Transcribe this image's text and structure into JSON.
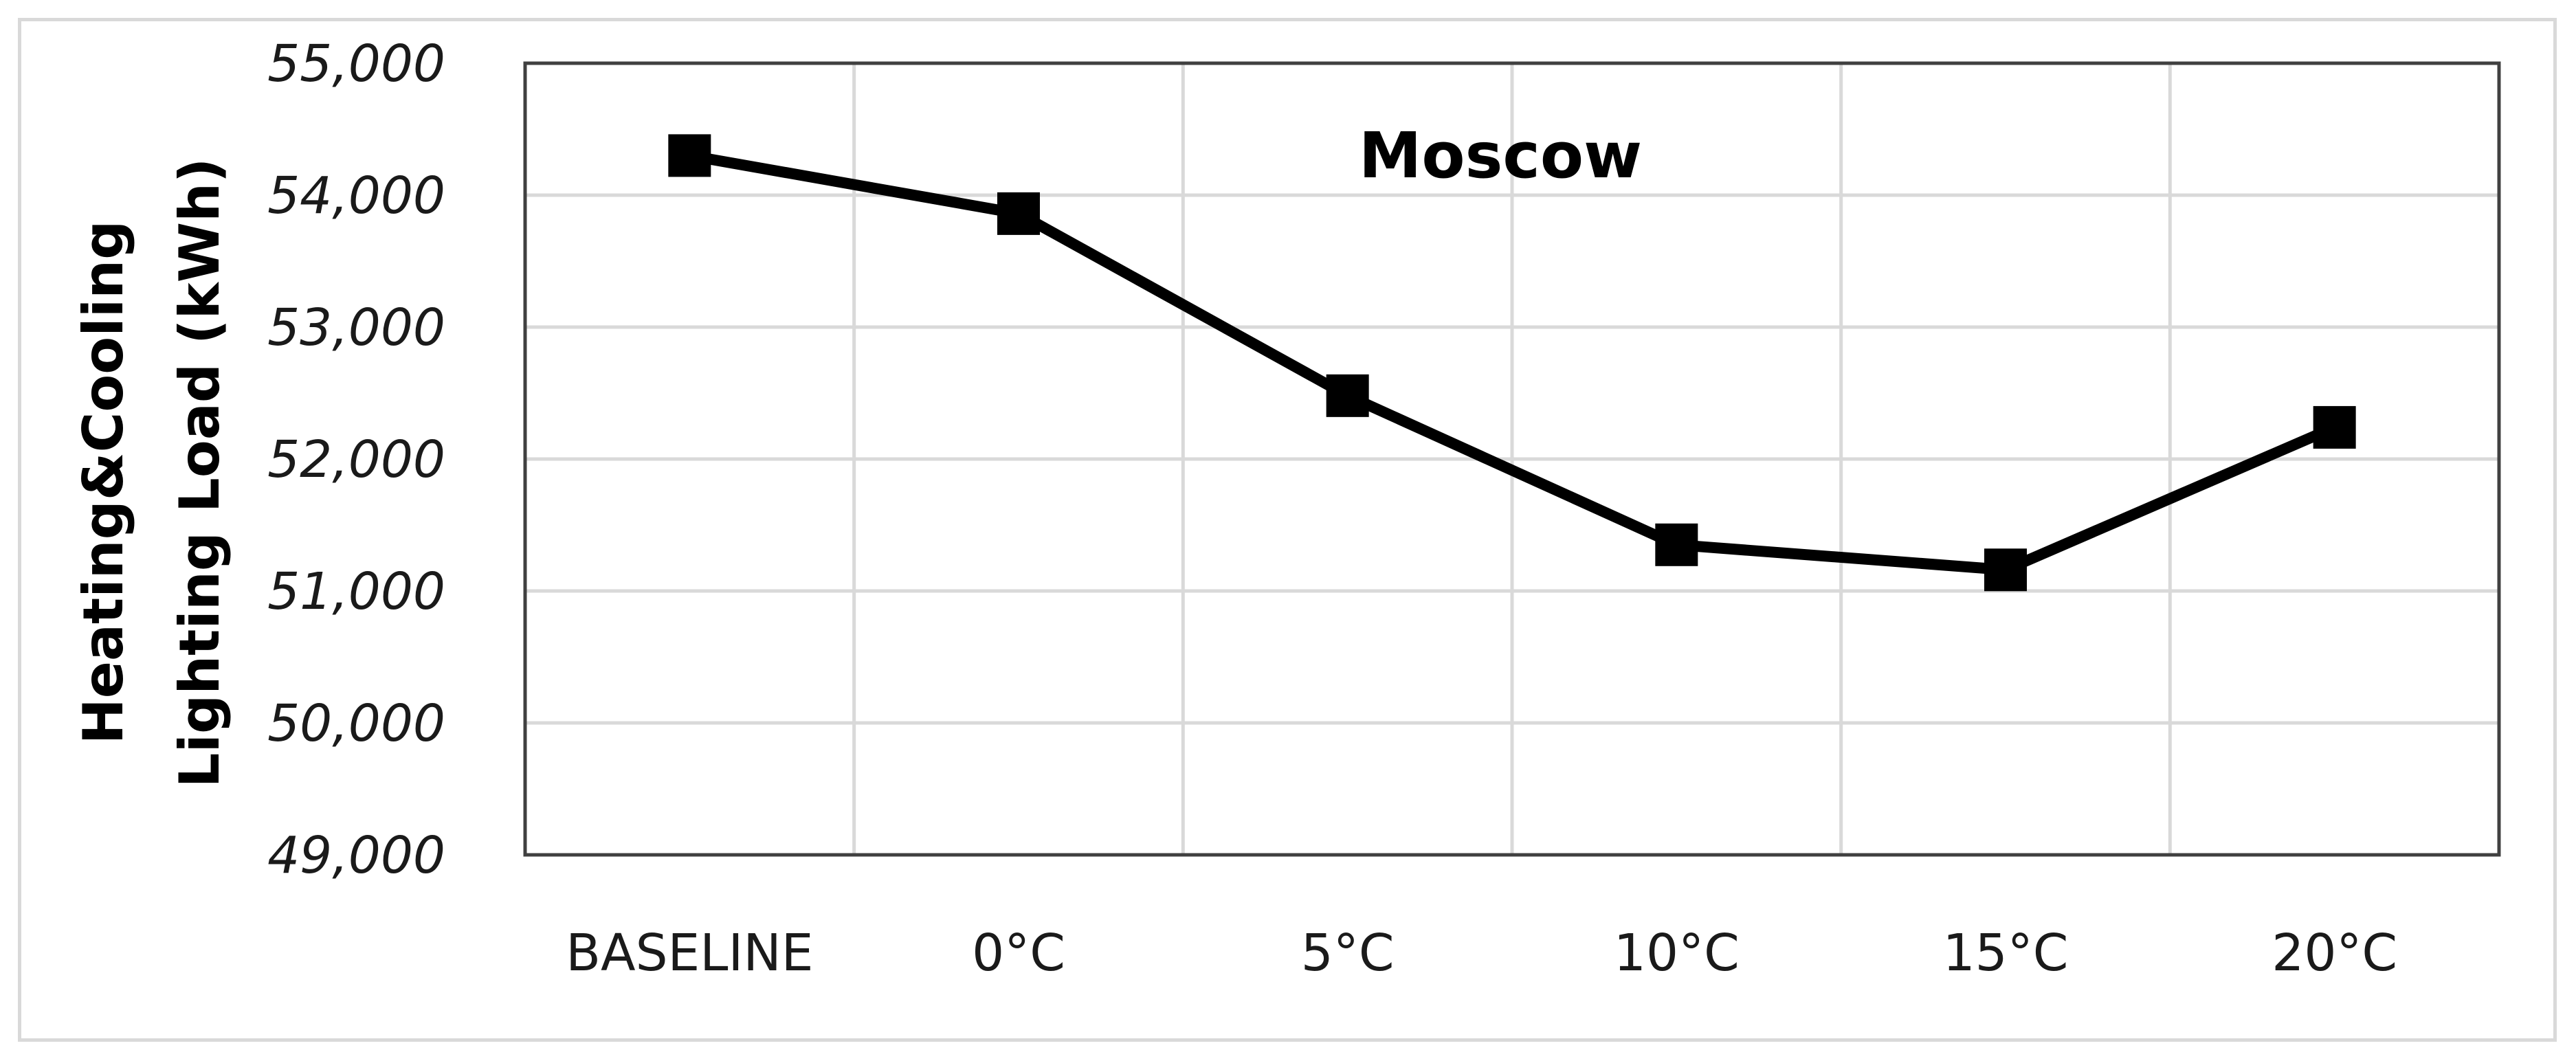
{
  "chart_data": {
    "type": "line",
    "title": "Moscow",
    "ylabel_lines": [
      "Heating&Cooling",
      "Lighting Load (kWh)"
    ],
    "xlabel": "",
    "categories": [
      "BASELINE",
      "0°C",
      "5°C",
      "10°C",
      "15°C",
      "20°C"
    ],
    "series": [
      {
        "values": [
          54300,
          53860,
          52480,
          51350,
          51160,
          52240
        ],
        "color": "#000000",
        "marker": "square"
      }
    ],
    "ylim": [
      49000,
      55000
    ],
    "ytick_values": [
      49000,
      50000,
      51000,
      52000,
      53000,
      54000,
      55000
    ],
    "ytick_labels": [
      "49,000",
      "50,000",
      "51,000",
      "52,000",
      "53,000",
      "54,000",
      "55,000"
    ],
    "grid": true,
    "legend": "none"
  }
}
